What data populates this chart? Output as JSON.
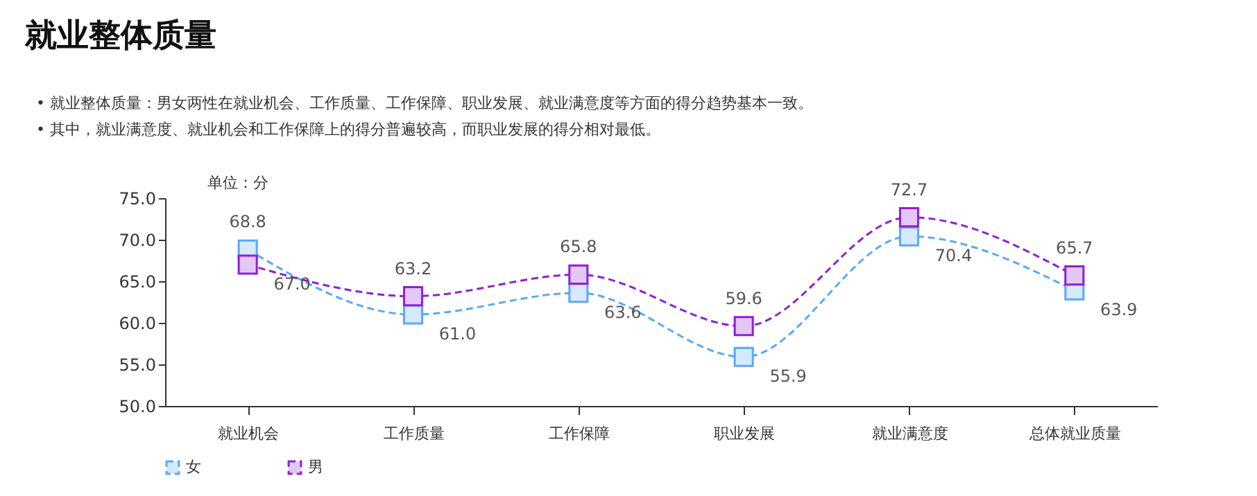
{
  "chart_data": {
    "type": "line",
    "title": "就业整体质量",
    "annotations": [
      "•  就业整体质量：男女两性在就业机会、工作质量、工作保障、职业发展、就业满意度等方面的得分趋势基本一致。",
      "•  其中，就业满意度、就业机会和工作保障上的得分普遍较高，而职业发展的得分相对最低。"
    ],
    "ylabel": "单位：分",
    "categories": [
      "就业机会",
      "工作质量",
      "工作保障",
      "职业发展",
      "就业满意度",
      "总体就业质量"
    ],
    "series": [
      {
        "name": "女",
        "color": "#5aa9f5",
        "values": [
          68.8,
          61.0,
          63.6,
          55.9,
          70.4,
          63.9
        ],
        "value_labels": [
          "68.8",
          "61.0",
          "63.6",
          "55.9",
          "70.4",
          "63.9"
        ]
      },
      {
        "name": "男",
        "color": "#8e1fd6",
        "values": [
          67.0,
          63.2,
          65.8,
          59.6,
          72.7,
          65.7
        ],
        "value_labels": [
          "67.0",
          "63.2",
          "65.8",
          "59.6",
          "72.7",
          "65.7"
        ]
      }
    ],
    "ylim": [
      50,
      75
    ],
    "yticks": [
      {
        "value": 50,
        "label": "50.0"
      },
      {
        "value": 55,
        "label": "55.0"
      },
      {
        "value": 60,
        "label": "60.0"
      },
      {
        "value": 65,
        "label": "65.0"
      },
      {
        "value": 70,
        "label": "70.0"
      },
      {
        "value": 75,
        "label": "75.0"
      }
    ],
    "grid": false,
    "legend": "bottom",
    "marker": "square",
    "line_style": "dashed"
  }
}
